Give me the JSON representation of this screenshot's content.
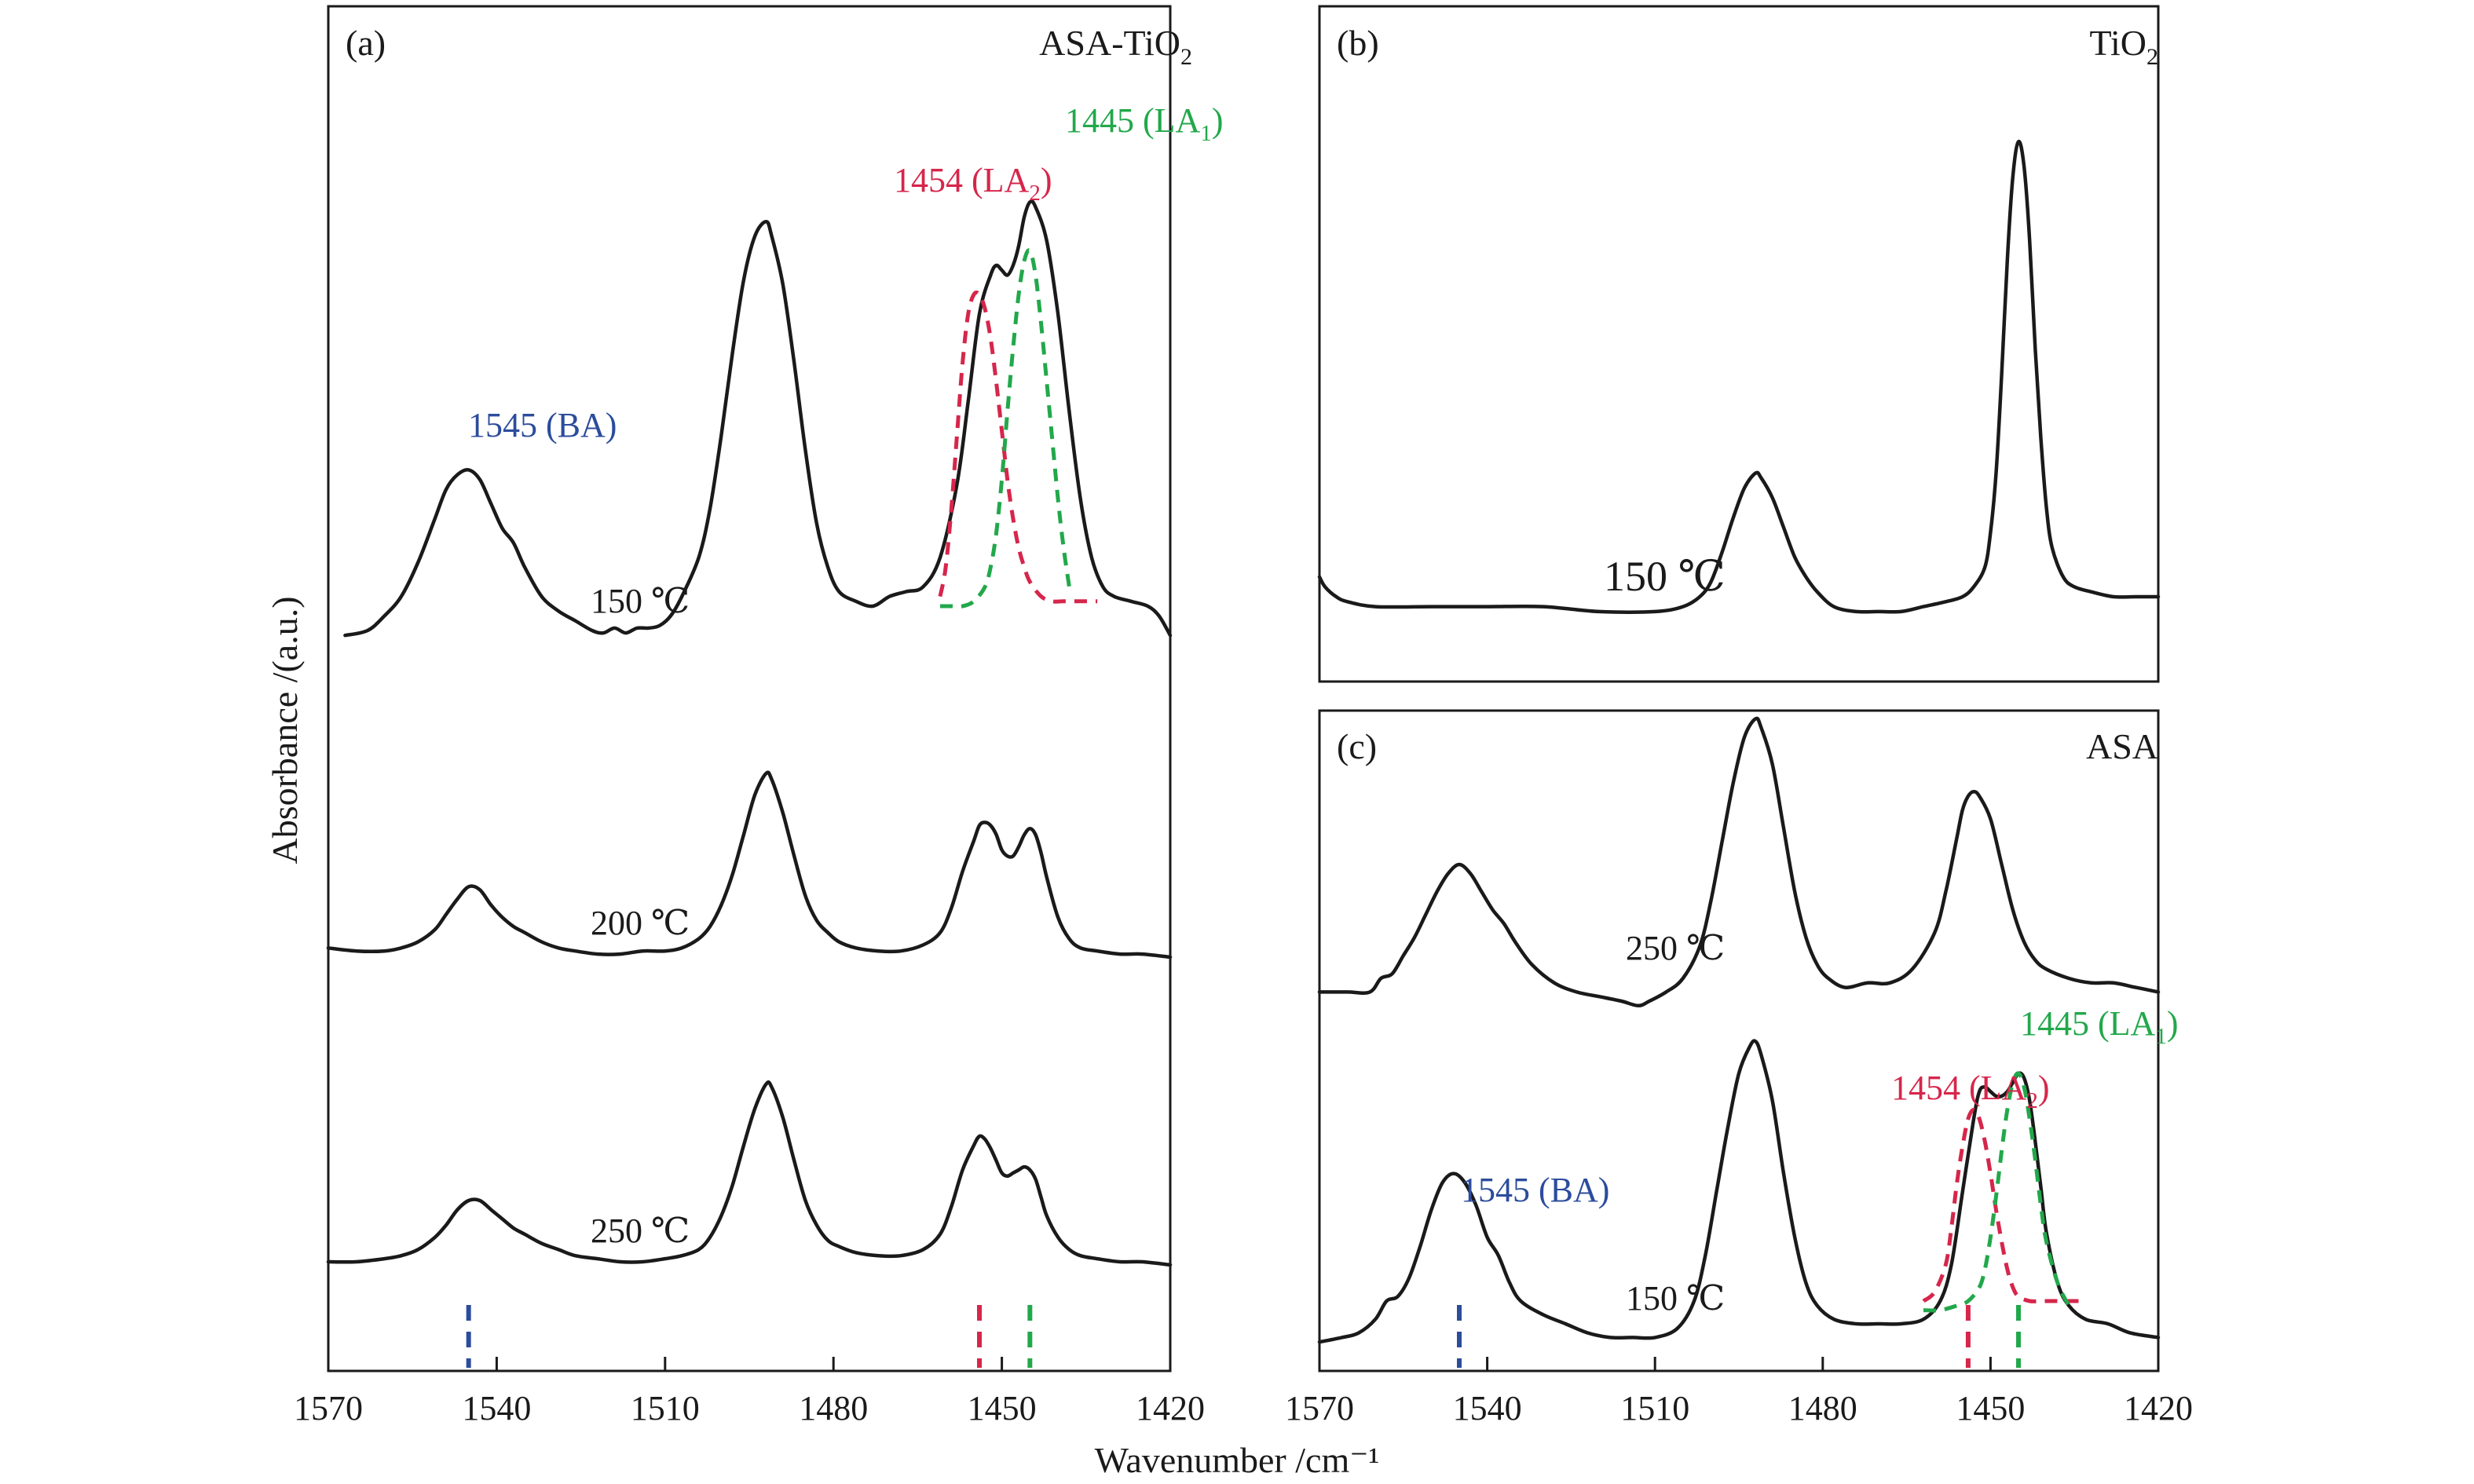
{
  "figure": {
    "ylabel": "Absorbance /(a.u.)",
    "xlabel": "Wavenumber /cm⁻¹"
  },
  "chart_data": [
    {
      "type": "line",
      "panel_label": "(a)",
      "title": "ASA-TiO₂",
      "xlim": [
        1570,
        1420
      ],
      "x_ticks": [
        "1570",
        "1540",
        "1510",
        "1480",
        "1450",
        "1420"
      ],
      "series": [
        {
          "name": "150 ℃",
          "x": [
            1567,
            1563,
            1560,
            1557,
            1554,
            1551,
            1549,
            1547,
            1545,
            1543,
            1541,
            1539,
            1537,
            1535,
            1532,
            1529,
            1526,
            1523,
            1521,
            1519,
            1517,
            1515,
            1513,
            1511,
            1509,
            1507,
            1504,
            1502,
            1500,
            1498,
            1496,
            1494,
            1492,
            1491,
            1489,
            1487,
            1485,
            1483,
            1481,
            1479,
            1476,
            1473,
            1470,
            1467,
            1464,
            1461,
            1458,
            1456,
            1454,
            1452,
            1451,
            1450,
            1449,
            1448,
            1447,
            1446,
            1445,
            1444,
            1442,
            1440,
            1438,
            1436,
            1434,
            1432,
            1430,
            1427,
            1424,
            1422,
            1420
          ],
          "y": [
            0.04,
            0.05,
            0.08,
            0.12,
            0.19,
            0.28,
            0.34,
            0.37,
            0.38,
            0.36,
            0.31,
            0.26,
            0.23,
            0.18,
            0.12,
            0.09,
            0.07,
            0.05,
            0.045,
            0.055,
            0.045,
            0.055,
            0.055,
            0.06,
            0.08,
            0.12,
            0.2,
            0.3,
            0.45,
            0.62,
            0.77,
            0.86,
            0.89,
            0.86,
            0.76,
            0.6,
            0.42,
            0.27,
            0.18,
            0.13,
            0.11,
            0.1,
            0.12,
            0.13,
            0.14,
            0.2,
            0.35,
            0.52,
            0.7,
            0.78,
            0.8,
            0.79,
            0.78,
            0.8,
            0.84,
            0.9,
            0.93,
            0.92,
            0.85,
            0.7,
            0.5,
            0.32,
            0.2,
            0.14,
            0.12,
            0.11,
            0.1,
            0.08,
            0.04
          ]
        },
        {
          "name": "200 ℃",
          "x": [
            1570,
            1565,
            1560,
            1557,
            1554,
            1551,
            1549,
            1547,
            1545,
            1543,
            1541,
            1539,
            1537,
            1535,
            1532,
            1529,
            1526,
            1522,
            1518,
            1514,
            1510,
            1507,
            1504,
            1502,
            1500,
            1498,
            1496,
            1494,
            1492,
            1491,
            1489,
            1487,
            1485,
            1483,
            1481,
            1479,
            1476,
            1472,
            1468,
            1464,
            1461,
            1459,
            1457,
            1455,
            1454,
            1453,
            1452,
            1451,
            1450,
            1449,
            1448,
            1447,
            1446,
            1445,
            1444,
            1443,
            1442,
            1440,
            1438,
            1436,
            1433,
            1429,
            1425,
            1420
          ],
          "y": [
            0.03,
            0.02,
            0.02,
            0.03,
            0.05,
            0.09,
            0.14,
            0.19,
            0.23,
            0.22,
            0.17,
            0.13,
            0.1,
            0.08,
            0.05,
            0.03,
            0.02,
            0.01,
            0.01,
            0.02,
            0.02,
            0.03,
            0.06,
            0.1,
            0.17,
            0.27,
            0.4,
            0.53,
            0.6,
            0.58,
            0.47,
            0.33,
            0.2,
            0.12,
            0.08,
            0.05,
            0.03,
            0.02,
            0.02,
            0.04,
            0.08,
            0.16,
            0.28,
            0.38,
            0.43,
            0.44,
            0.43,
            0.4,
            0.35,
            0.33,
            0.33,
            0.36,
            0.4,
            0.42,
            0.4,
            0.34,
            0.26,
            0.13,
            0.06,
            0.03,
            0.02,
            0.01,
            0.01,
            0.0
          ]
        },
        {
          "name": "250 ℃",
          "x": [
            1570,
            1565,
            1560,
            1557,
            1554,
            1551,
            1549,
            1547,
            1545,
            1543,
            1541,
            1539,
            1537,
            1535,
            1532,
            1529,
            1526,
            1522,
            1518,
            1514,
            1510,
            1507,
            1504,
            1502,
            1500,
            1498,
            1496,
            1494,
            1492,
            1491,
            1489,
            1487,
            1485,
            1483,
            1481,
            1479,
            1476,
            1472,
            1468,
            1464,
            1461,
            1459,
            1457,
            1455,
            1454,
            1453,
            1452,
            1451,
            1450,
            1449,
            1448,
            1447,
            1446,
            1445,
            1444,
            1443,
            1442,
            1440,
            1438,
            1436,
            1433,
            1429,
            1425,
            1420
          ],
          "y": [
            0.0,
            0.0,
            0.01,
            0.02,
            0.04,
            0.08,
            0.12,
            0.17,
            0.2,
            0.2,
            0.17,
            0.14,
            0.11,
            0.09,
            0.06,
            0.04,
            0.02,
            0.01,
            0.0,
            0.0,
            0.01,
            0.02,
            0.04,
            0.08,
            0.15,
            0.25,
            0.38,
            0.5,
            0.58,
            0.57,
            0.47,
            0.33,
            0.2,
            0.12,
            0.07,
            0.05,
            0.03,
            0.02,
            0.02,
            0.04,
            0.09,
            0.18,
            0.3,
            0.38,
            0.41,
            0.4,
            0.37,
            0.33,
            0.29,
            0.28,
            0.29,
            0.3,
            0.31,
            0.3,
            0.27,
            0.21,
            0.15,
            0.08,
            0.04,
            0.02,
            0.01,
            0.0,
            0.0,
            -0.01
          ]
        },
        {
          "name": "1454 (LA₂) fit",
          "color": "#d6264b",
          "dashed": true,
          "x": [
            1461,
            1460,
            1459,
            1458,
            1457,
            1456,
            1455,
            1454,
            1453,
            1452,
            1451,
            1450,
            1449,
            1448,
            1447,
            1446,
            1445,
            1443,
            1441,
            1439,
            1436,
            1433
          ],
          "y": [
            0.12,
            0.18,
            0.3,
            0.45,
            0.6,
            0.7,
            0.74,
            0.74,
            0.71,
            0.65,
            0.56,
            0.46,
            0.36,
            0.28,
            0.22,
            0.18,
            0.15,
            0.12,
            0.11,
            0.11,
            0.11,
            0.11
          ]
        },
        {
          "name": "1445 (LA₁) fit",
          "color": "#22a84b",
          "dashed": true,
          "x": [
            1461,
            1459,
            1457,
            1455,
            1453,
            1452,
            1451,
            1450,
            1449,
            1448,
            1447,
            1446,
            1445,
            1444,
            1443,
            1442,
            1441,
            1440,
            1439,
            1438
          ],
          "y": [
            0.1,
            0.1,
            0.1,
            0.11,
            0.14,
            0.18,
            0.25,
            0.36,
            0.5,
            0.63,
            0.74,
            0.81,
            0.83,
            0.78,
            0.68,
            0.56,
            0.44,
            0.32,
            0.22,
            0.14
          ]
        }
      ],
      "annotations": [
        {
          "text": "1545 (BA)",
          "x": 1545,
          "color": "#2c4c9c"
        },
        {
          "text": "1454 (LA₂)",
          "x": 1454,
          "color": "#d6264b"
        },
        {
          "text": "1445 (LA₁)",
          "x": 1445,
          "color": "#22a84b"
        }
      ],
      "markers": [
        {
          "x": 1545,
          "color": "#2c4c9c"
        },
        {
          "x": 1454,
          "color": "#d6264b"
        },
        {
          "x": 1445,
          "color": "#22a84b"
        }
      ]
    },
    {
      "type": "line",
      "panel_label": "(b)",
      "title": "TiO₂",
      "xlim": [
        1570,
        1420
      ],
      "series": [
        {
          "name": "150 ℃",
          "x": [
            1570,
            1569,
            1567,
            1565,
            1560,
            1550,
            1540,
            1530,
            1520,
            1510,
            1505,
            1502,
            1500,
            1498,
            1496,
            1494,
            1492,
            1491,
            1489,
            1487,
            1485,
            1483,
            1481,
            1478,
            1474,
            1470,
            1466,
            1462,
            1458,
            1455,
            1453,
            1451,
            1450,
            1449,
            1448,
            1447,
            1446,
            1445,
            1444,
            1443,
            1442,
            1441,
            1440,
            1439,
            1437,
            1435,
            1432,
            1428,
            1424,
            1420
          ],
          "y": [
            0.04,
            0.02,
            0.0,
            -0.01,
            -0.02,
            -0.02,
            -0.02,
            -0.02,
            -0.03,
            -0.03,
            -0.02,
            0.0,
            0.03,
            0.09,
            0.16,
            0.22,
            0.25,
            0.24,
            0.2,
            0.14,
            0.08,
            0.04,
            0.01,
            -0.02,
            -0.03,
            -0.03,
            -0.03,
            -0.02,
            -0.01,
            0.0,
            0.02,
            0.06,
            0.13,
            0.25,
            0.45,
            0.68,
            0.85,
            0.92,
            0.87,
            0.72,
            0.5,
            0.32,
            0.18,
            0.1,
            0.04,
            0.02,
            0.01,
            0.0,
            0.0,
            0.0
          ]
        }
      ]
    },
    {
      "type": "line",
      "panel_label": "(c)",
      "title": "ASA",
      "xlim": [
        1570,
        1420
      ],
      "x_ticks": [
        "1570",
        "1540",
        "1510",
        "1480",
        "1450",
        "1420"
      ],
      "series": [
        {
          "name": "250 ℃",
          "x": [
            1570,
            1565,
            1561,
            1559,
            1557,
            1555,
            1553,
            1551,
            1549,
            1547,
            1545,
            1543,
            1541,
            1539,
            1537,
            1535,
            1532,
            1528,
            1524,
            1520,
            1516,
            1513,
            1511,
            1508,
            1505,
            1502,
            1500,
            1498,
            1496,
            1494,
            1492,
            1491,
            1489,
            1487,
            1485,
            1483,
            1481,
            1479,
            1476,
            1472,
            1468,
            1464,
            1460,
            1458,
            1456,
            1455,
            1454,
            1453,
            1452,
            1450,
            1448,
            1446,
            1444,
            1442,
            1440,
            1436,
            1432,
            1428,
            1424,
            1420
          ],
          "y": [
            0.02,
            0.02,
            0.02,
            0.05,
            0.06,
            0.1,
            0.14,
            0.19,
            0.24,
            0.28,
            0.3,
            0.28,
            0.24,
            0.2,
            0.17,
            0.13,
            0.08,
            0.04,
            0.02,
            0.01,
            0.0,
            -0.01,
            0.0,
            0.02,
            0.05,
            0.12,
            0.22,
            0.35,
            0.48,
            0.58,
            0.62,
            0.6,
            0.52,
            0.38,
            0.24,
            0.14,
            0.08,
            0.05,
            0.03,
            0.04,
            0.04,
            0.07,
            0.15,
            0.24,
            0.36,
            0.42,
            0.45,
            0.46,
            0.45,
            0.4,
            0.3,
            0.2,
            0.13,
            0.09,
            0.07,
            0.05,
            0.04,
            0.04,
            0.03,
            0.02
          ]
        },
        {
          "name": "150 ℃",
          "x": [
            1570,
            1566,
            1563,
            1560,
            1558,
            1556,
            1554,
            1552,
            1550,
            1548,
            1546,
            1544,
            1542,
            1540,
            1538,
            1536,
            1534,
            1530,
            1526,
            1522,
            1518,
            1514,
            1510,
            1506,
            1503,
            1501,
            1499,
            1497,
            1495,
            1493,
            1492,
            1491,
            1489,
            1487,
            1485,
            1483,
            1481,
            1478,
            1474,
            1470,
            1466,
            1462,
            1459,
            1457,
            1455,
            1453,
            1452,
            1451,
            1450,
            1449,
            1448,
            1447,
            1446,
            1445,
            1444,
            1443,
            1442,
            1441,
            1440,
            1438,
            1436,
            1433,
            1429,
            1425,
            1420
          ],
          "y": [
            0.01,
            0.02,
            0.03,
            0.06,
            0.1,
            0.11,
            0.15,
            0.22,
            0.3,
            0.36,
            0.38,
            0.36,
            0.31,
            0.24,
            0.2,
            0.14,
            0.1,
            0.07,
            0.05,
            0.03,
            0.02,
            0.02,
            0.02,
            0.04,
            0.1,
            0.2,
            0.34,
            0.48,
            0.6,
            0.66,
            0.67,
            0.64,
            0.54,
            0.38,
            0.24,
            0.14,
            0.09,
            0.06,
            0.05,
            0.05,
            0.05,
            0.06,
            0.1,
            0.18,
            0.34,
            0.5,
            0.56,
            0.57,
            0.56,
            0.55,
            0.55,
            0.56,
            0.58,
            0.6,
            0.59,
            0.54,
            0.45,
            0.35,
            0.25,
            0.14,
            0.09,
            0.06,
            0.05,
            0.03,
            0.02
          ]
        },
        {
          "name": "1454 (LA₂) fit",
          "color": "#d6264b",
          "dashed": true,
          "x": [
            1462,
            1460,
            1458,
            1457,
            1456,
            1455,
            1454,
            1453,
            1452,
            1451,
            1450,
            1449,
            1448,
            1447,
            1446,
            1445,
            1443,
            1441,
            1439,
            1436,
            1433
          ],
          "y": [
            0.1,
            0.12,
            0.18,
            0.26,
            0.36,
            0.44,
            0.5,
            0.52,
            0.5,
            0.45,
            0.38,
            0.3,
            0.23,
            0.17,
            0.13,
            0.11,
            0.1,
            0.1,
            0.1,
            0.1,
            0.1
          ]
        },
        {
          "name": "1445 (LA₁) fit",
          "color": "#22a84b",
          "dashed": true,
          "x": [
            1462,
            1459,
            1456,
            1454,
            1452,
            1451,
            1450,
            1449,
            1448,
            1447,
            1446,
            1445,
            1444,
            1443,
            1442,
            1441,
            1440,
            1438,
            1436
          ],
          "y": [
            0.08,
            0.08,
            0.09,
            0.1,
            0.13,
            0.17,
            0.24,
            0.33,
            0.43,
            0.52,
            0.58,
            0.6,
            0.57,
            0.5,
            0.41,
            0.31,
            0.23,
            0.14,
            0.09
          ]
        }
      ],
      "annotations": [
        {
          "text": "1545 (BA)",
          "x": 1545,
          "color": "#2c4c9c"
        },
        {
          "text": "1454 (LA₂)",
          "x": 1454,
          "color": "#d6264b"
        },
        {
          "text": "1445 (LA₁)",
          "x": 1445,
          "color": "#22a84b"
        }
      ],
      "markers": [
        {
          "x": 1545,
          "color": "#2c4c9c"
        },
        {
          "x": 1454,
          "color": "#d6264b"
        },
        {
          "x": 1445,
          "color": "#22a84b"
        }
      ]
    }
  ]
}
